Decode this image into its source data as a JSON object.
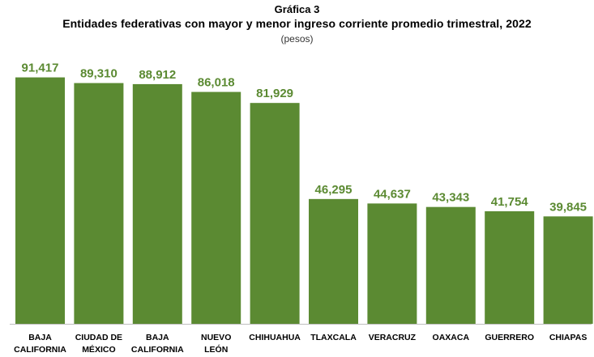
{
  "header": {
    "label": "Gráfica 3",
    "title": "Entidades federativas con mayor y menor ingreso corriente promedio trimestral, 2022",
    "subtitle": "(pesos)"
  },
  "colors": {
    "bar": "#5b8a32",
    "value_label": "#5b8a32",
    "axis": "#bfbfbf"
  },
  "chart_data": {
    "type": "bar",
    "title": "Entidades federativas con mayor y menor ingreso corriente promedio trimestral, 2022",
    "subtitle": "(pesos)",
    "categories": [
      [
        "BAJA",
        "CALIFORNIA"
      ],
      [
        "CIUDAD DE",
        "MÉXICO"
      ],
      [
        "BAJA",
        "CALIFORNIA"
      ],
      [
        "NUEVO",
        "LEÓN"
      ],
      [
        "CHIHUAHUA"
      ],
      [
        "TLAXCALA"
      ],
      [
        "VERACRUZ"
      ],
      [
        "OAXACA"
      ],
      [
        "GUERRERO"
      ],
      [
        "CHIAPAS"
      ]
    ],
    "values": [
      91417,
      89310,
      88912,
      86018,
      81929,
      46295,
      44637,
      43343,
      41754,
      39845
    ],
    "value_labels": [
      "91,417",
      "89,310",
      "88,912",
      "86,018",
      "81,929",
      "46,295",
      "44,637",
      "43,343",
      "41,754",
      "39,845"
    ],
    "ylim": [
      0,
      100000
    ],
    "grid": false,
    "legend": "none"
  }
}
